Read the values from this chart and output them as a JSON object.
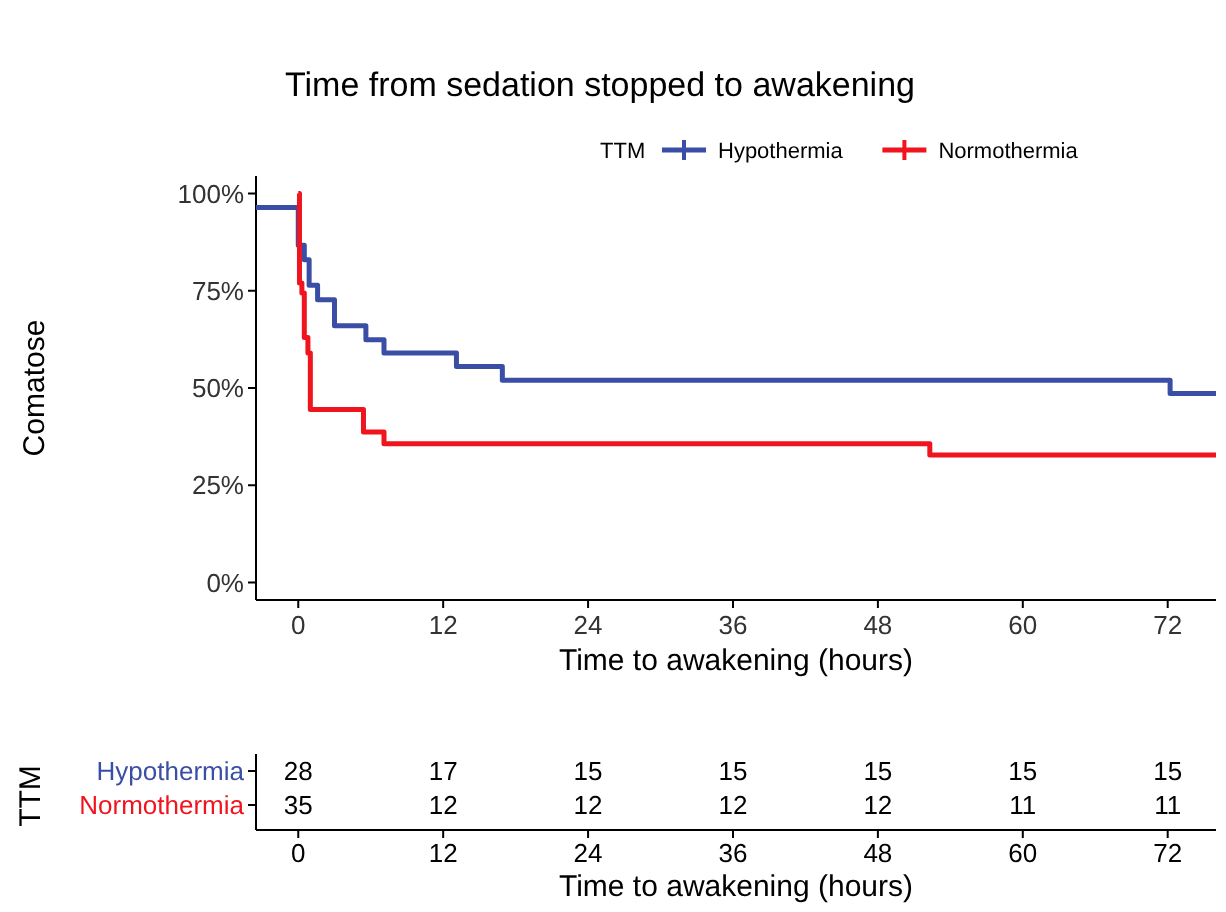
{
  "chart_data": [
    {
      "type": "step",
      "title": "Time from sedation stopped to awakening",
      "xlabel": "Time to awakening (hours)",
      "ylabel": "Comatose",
      "legend_title": "TTM",
      "legend": "top",
      "xlim": [
        -3.5,
        76
      ],
      "xticks": [
        0,
        12,
        24,
        36,
        48,
        60,
        72
      ],
      "ylim": [
        -4.5,
        104.5
      ],
      "yticks": [
        {
          "value": 0,
          "label": "0%"
        },
        {
          "value": 25,
          "label": "25%"
        },
        {
          "value": 50,
          "label": "50%"
        },
        {
          "value": 75,
          "label": "75%"
        },
        {
          "value": 100,
          "label": "100%"
        }
      ],
      "grid": false,
      "series": [
        {
          "name": "Hypothermia",
          "color": "#3a4ea6",
          "x": [
            -3.5,
            0,
            0.5,
            0.9,
            1.6,
            3.0,
            5.6,
            7.1,
            13.1,
            16.9,
            72.2,
            76
          ],
          "values": [
            96.4,
            86.7,
            83,
            76.4,
            72.7,
            66,
            62.4,
            59,
            55.5,
            52,
            48.6,
            48.6
          ]
        },
        {
          "name": "Normothermia",
          "color": "#f0141e",
          "x": [
            0,
            0.1,
            0.3,
            0.5,
            0.8,
            1.0,
            5.4,
            7.1,
            52.3,
            76
          ],
          "values": [
            100,
            77,
            74.4,
            63,
            59,
            44.5,
            38.7,
            35.7,
            32.8,
            32.8
          ]
        }
      ]
    },
    {
      "type": "heatmap",
      "xlabel": "Time to awakening (hours)",
      "ylabel": "TTM",
      "categories": [
        "0",
        "12",
        "24",
        "36",
        "48",
        "60",
        "72"
      ],
      "y_categories": [
        "Hypothermia",
        "Normothermia"
      ],
      "colors": [
        "#3a4ea6",
        "#f0141e"
      ],
      "data_labels": true,
      "cells": [
        [
          28,
          17,
          15,
          15,
          15,
          15,
          15
        ],
        [
          35,
          12,
          12,
          12,
          12,
          11,
          11
        ]
      ]
    }
  ]
}
